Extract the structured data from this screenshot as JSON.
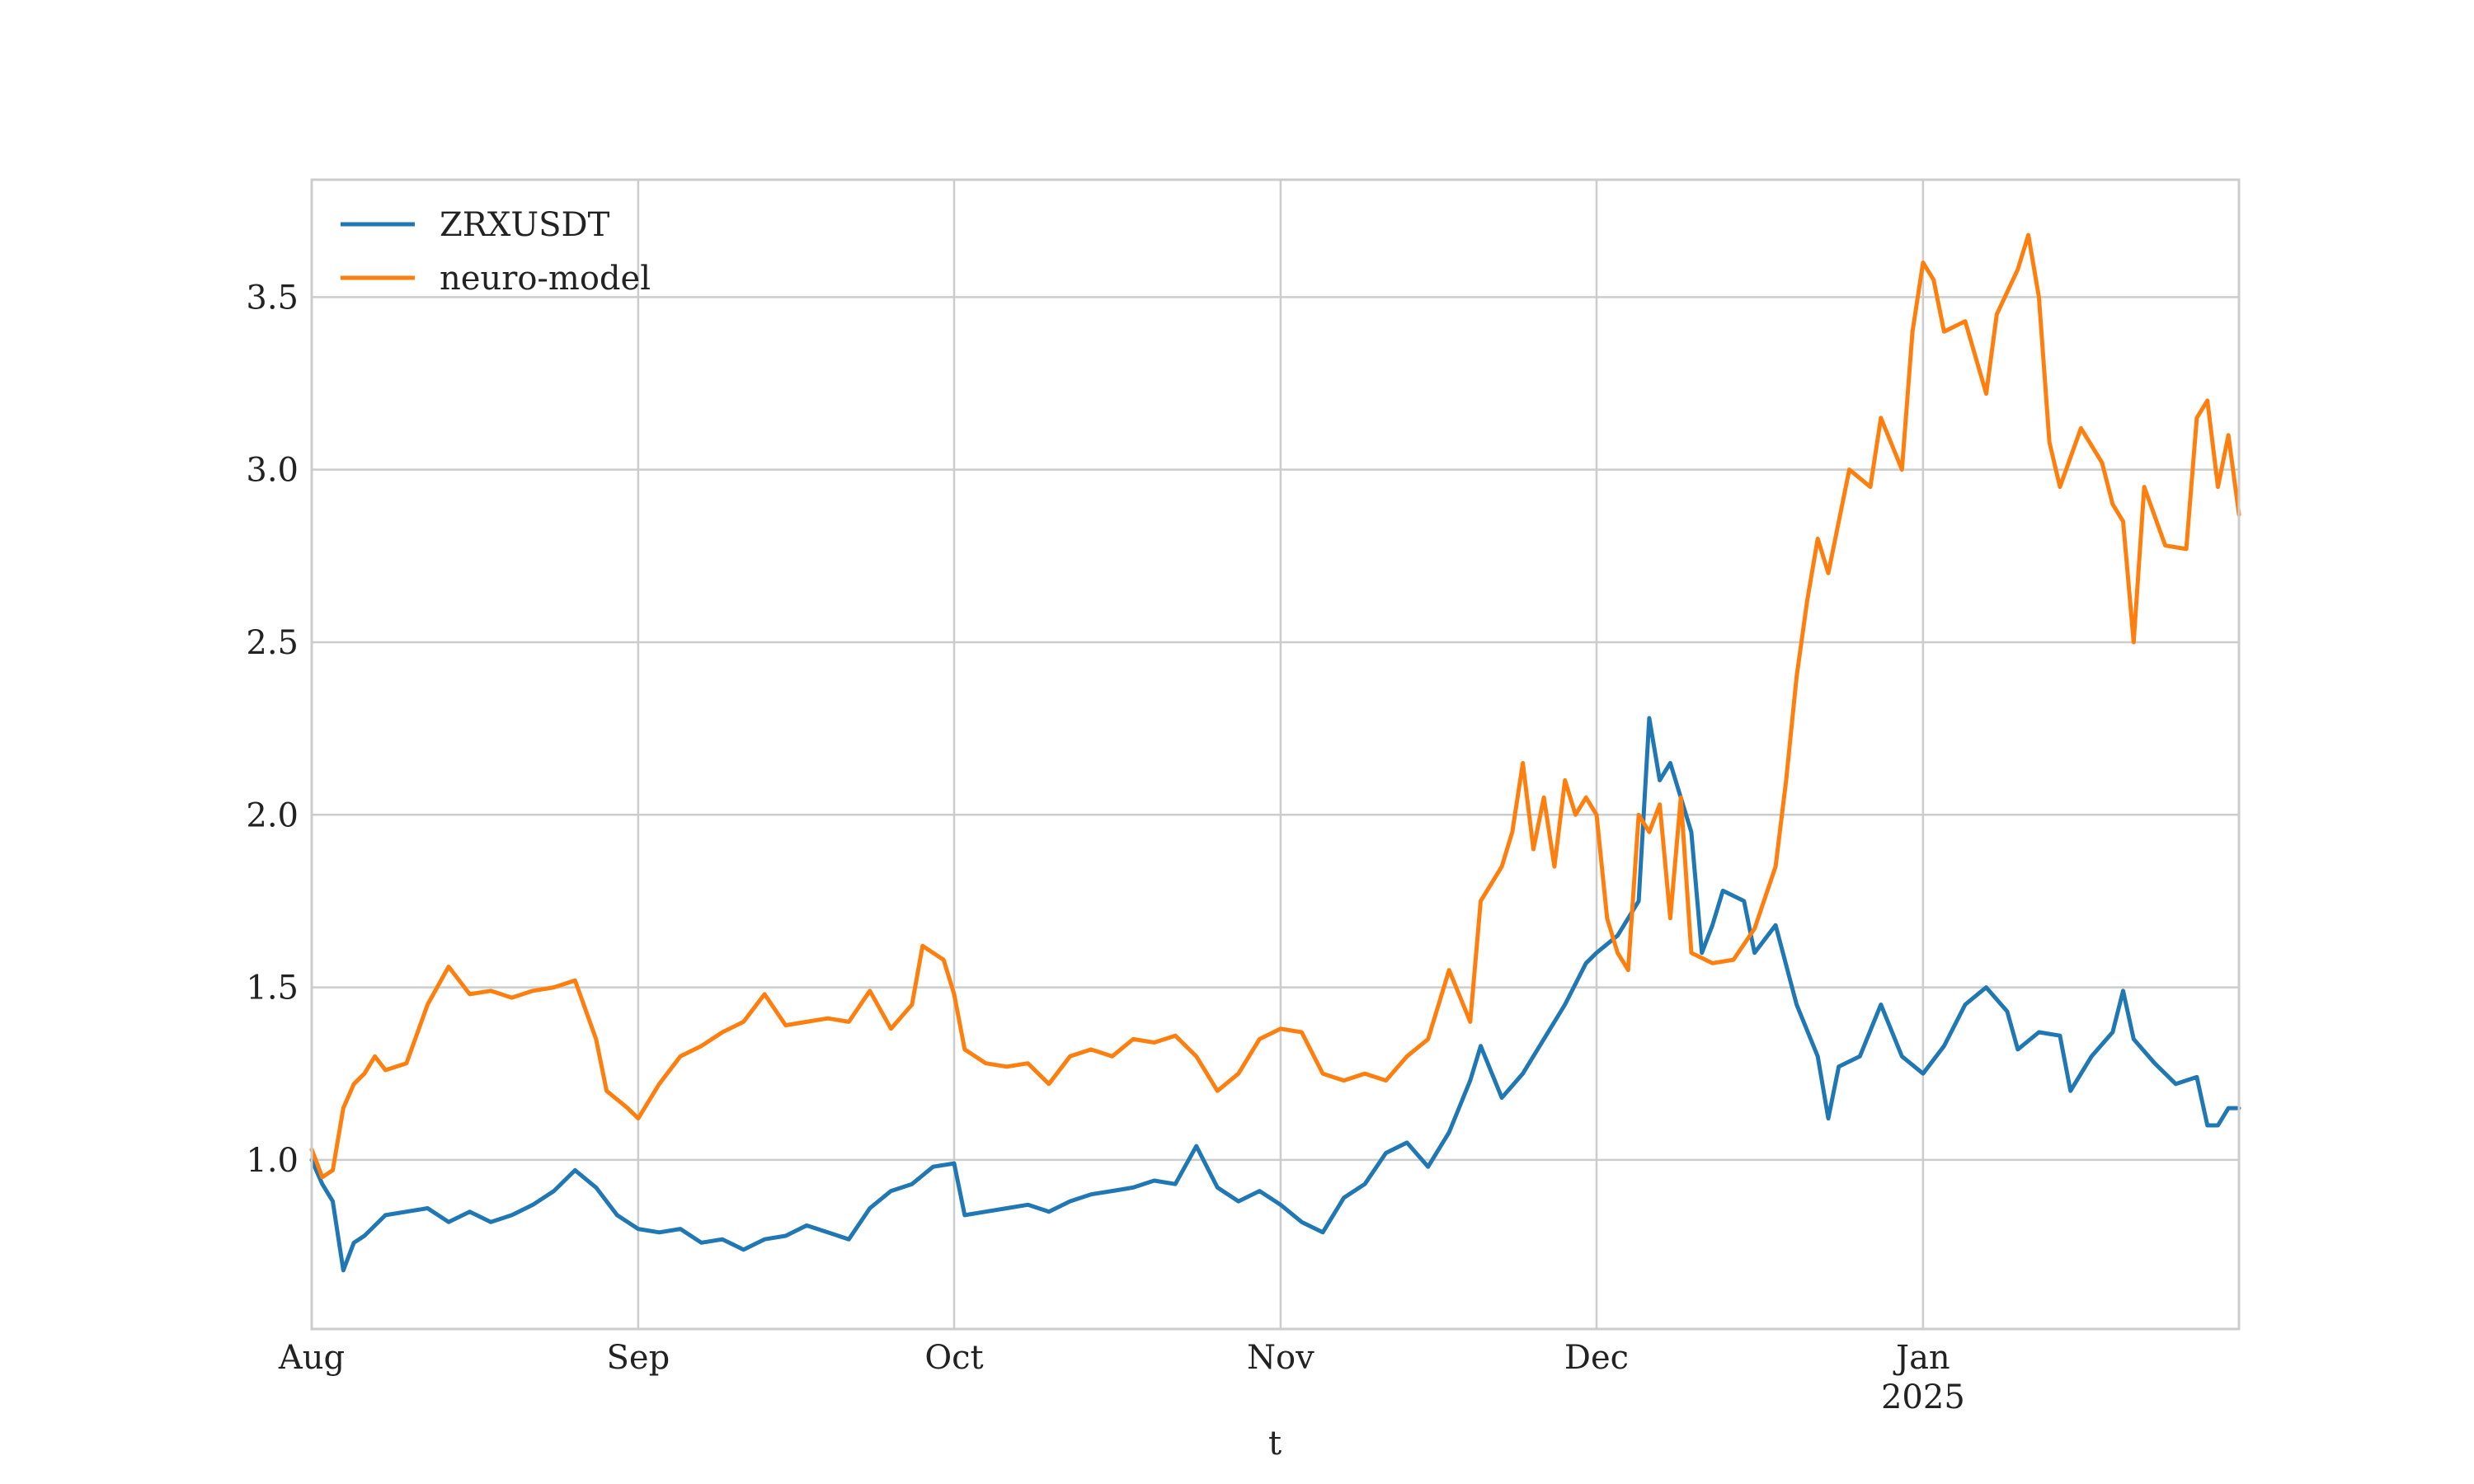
{
  "chart_data": {
    "type": "line",
    "title": "",
    "xlabel": "t",
    "ylabel": "",
    "x_range": [
      "2024-08-01",
      "2025-01-31"
    ],
    "ylim": [
      0.51,
      3.84
    ],
    "grid": true,
    "legend_position": "top-left",
    "x_ticks": [
      {
        "date": "2024-08-01",
        "label": "Aug",
        "sublabel": ""
      },
      {
        "date": "2024-09-01",
        "label": "Sep",
        "sublabel": ""
      },
      {
        "date": "2024-10-01",
        "label": "Oct",
        "sublabel": ""
      },
      {
        "date": "2024-11-01",
        "label": "Nov",
        "sublabel": ""
      },
      {
        "date": "2024-12-01",
        "label": "Dec",
        "sublabel": ""
      },
      {
        "date": "2025-01-01",
        "label": "Jan",
        "sublabel": "2025"
      }
    ],
    "y_ticks": [
      {
        "value": 1.0,
        "label": "1.0"
      },
      {
        "value": 1.5,
        "label": "1.5"
      },
      {
        "value": 2.0,
        "label": "2.0"
      },
      {
        "value": 2.5,
        "label": "2.5"
      },
      {
        "value": 3.0,
        "label": "3.0"
      },
      {
        "value": 3.5,
        "label": "3.5"
      }
    ],
    "series": [
      {
        "name": "ZRXUSDT",
        "color": "#1f77b4",
        "points": [
          [
            "2024-08-01",
            1.0
          ],
          [
            "2024-08-02",
            0.93
          ],
          [
            "2024-08-03",
            0.88
          ],
          [
            "2024-08-04",
            0.68
          ],
          [
            "2024-08-05",
            0.76
          ],
          [
            "2024-08-06",
            0.78
          ],
          [
            "2024-08-08",
            0.84
          ],
          [
            "2024-08-10",
            0.85
          ],
          [
            "2024-08-12",
            0.86
          ],
          [
            "2024-08-14",
            0.82
          ],
          [
            "2024-08-16",
            0.85
          ],
          [
            "2024-08-18",
            0.82
          ],
          [
            "2024-08-20",
            0.84
          ],
          [
            "2024-08-22",
            0.87
          ],
          [
            "2024-08-24",
            0.91
          ],
          [
            "2024-08-26",
            0.97
          ],
          [
            "2024-08-28",
            0.92
          ],
          [
            "2024-08-30",
            0.84
          ],
          [
            "2024-09-01",
            0.8
          ],
          [
            "2024-09-03",
            0.79
          ],
          [
            "2024-09-05",
            0.8
          ],
          [
            "2024-09-07",
            0.76
          ],
          [
            "2024-09-09",
            0.77
          ],
          [
            "2024-09-11",
            0.74
          ],
          [
            "2024-09-13",
            0.77
          ],
          [
            "2024-09-15",
            0.78
          ],
          [
            "2024-09-17",
            0.81
          ],
          [
            "2024-09-19",
            0.79
          ],
          [
            "2024-09-21",
            0.77
          ],
          [
            "2024-09-23",
            0.86
          ],
          [
            "2024-09-25",
            0.91
          ],
          [
            "2024-09-27",
            0.93
          ],
          [
            "2024-09-29",
            0.98
          ],
          [
            "2024-10-01",
            0.99
          ],
          [
            "2024-10-02",
            0.84
          ],
          [
            "2024-10-04",
            0.85
          ],
          [
            "2024-10-06",
            0.86
          ],
          [
            "2024-10-08",
            0.87
          ],
          [
            "2024-10-10",
            0.85
          ],
          [
            "2024-10-12",
            0.88
          ],
          [
            "2024-10-14",
            0.9
          ],
          [
            "2024-10-16",
            0.91
          ],
          [
            "2024-10-18",
            0.92
          ],
          [
            "2024-10-20",
            0.94
          ],
          [
            "2024-10-22",
            0.93
          ],
          [
            "2024-10-24",
            1.04
          ],
          [
            "2024-10-26",
            0.92
          ],
          [
            "2024-10-28",
            0.88
          ],
          [
            "2024-10-30",
            0.91
          ],
          [
            "2024-11-01",
            0.87
          ],
          [
            "2024-11-03",
            0.82
          ],
          [
            "2024-11-05",
            0.79
          ],
          [
            "2024-11-07",
            0.89
          ],
          [
            "2024-11-09",
            0.93
          ],
          [
            "2024-11-11",
            1.02
          ],
          [
            "2024-11-13",
            1.05
          ],
          [
            "2024-11-15",
            0.98
          ],
          [
            "2024-11-17",
            1.08
          ],
          [
            "2024-11-19",
            1.23
          ],
          [
            "2024-11-20",
            1.33
          ],
          [
            "2024-11-22",
            1.18
          ],
          [
            "2024-11-24",
            1.25
          ],
          [
            "2024-11-26",
            1.35
          ],
          [
            "2024-11-28",
            1.45
          ],
          [
            "2024-11-30",
            1.57
          ],
          [
            "2024-12-01",
            1.6
          ],
          [
            "2024-12-03",
            1.65
          ],
          [
            "2024-12-05",
            1.75
          ],
          [
            "2024-12-06",
            2.28
          ],
          [
            "2024-12-07",
            2.1
          ],
          [
            "2024-12-08",
            2.15
          ],
          [
            "2024-12-10",
            1.95
          ],
          [
            "2024-12-11",
            1.6
          ],
          [
            "2024-12-12",
            1.68
          ],
          [
            "2024-12-13",
            1.78
          ],
          [
            "2024-12-15",
            1.75
          ],
          [
            "2024-12-16",
            1.6
          ],
          [
            "2024-12-18",
            1.68
          ],
          [
            "2024-12-20",
            1.45
          ],
          [
            "2024-12-22",
            1.3
          ],
          [
            "2024-12-23",
            1.12
          ],
          [
            "2024-12-24",
            1.27
          ],
          [
            "2024-12-26",
            1.3
          ],
          [
            "2024-12-28",
            1.45
          ],
          [
            "2024-12-30",
            1.3
          ],
          [
            "2025-01-01",
            1.25
          ],
          [
            "2025-01-03",
            1.33
          ],
          [
            "2025-01-05",
            1.45
          ],
          [
            "2025-01-07",
            1.5
          ],
          [
            "2025-01-09",
            1.43
          ],
          [
            "2025-01-10",
            1.32
          ],
          [
            "2025-01-12",
            1.37
          ],
          [
            "2025-01-14",
            1.36
          ],
          [
            "2025-01-15",
            1.2
          ],
          [
            "2025-01-17",
            1.3
          ],
          [
            "2025-01-19",
            1.37
          ],
          [
            "2025-01-20",
            1.49
          ],
          [
            "2025-01-21",
            1.35
          ],
          [
            "2025-01-23",
            1.28
          ],
          [
            "2025-01-25",
            1.22
          ],
          [
            "2025-01-27",
            1.24
          ],
          [
            "2025-01-28",
            1.1
          ],
          [
            "2025-01-29",
            1.1
          ],
          [
            "2025-01-30",
            1.15
          ],
          [
            "2025-01-31",
            1.15
          ]
        ]
      },
      {
        "name": "neuro-model",
        "color": "#ff7f0e",
        "points": [
          [
            "2024-08-01",
            1.03
          ],
          [
            "2024-08-02",
            0.95
          ],
          [
            "2024-08-03",
            0.97
          ],
          [
            "2024-08-04",
            1.15
          ],
          [
            "2024-08-05",
            1.22
          ],
          [
            "2024-08-06",
            1.25
          ],
          [
            "2024-08-07",
            1.3
          ],
          [
            "2024-08-08",
            1.26
          ],
          [
            "2024-08-10",
            1.28
          ],
          [
            "2024-08-12",
            1.45
          ],
          [
            "2024-08-14",
            1.56
          ],
          [
            "2024-08-16",
            1.48
          ],
          [
            "2024-08-18",
            1.49
          ],
          [
            "2024-08-20",
            1.47
          ],
          [
            "2024-08-22",
            1.49
          ],
          [
            "2024-08-24",
            1.5
          ],
          [
            "2024-08-26",
            1.52
          ],
          [
            "2024-08-28",
            1.35
          ],
          [
            "2024-08-29",
            1.2
          ],
          [
            "2024-08-31",
            1.15
          ],
          [
            "2024-09-01",
            1.12
          ],
          [
            "2024-09-03",
            1.22
          ],
          [
            "2024-09-05",
            1.3
          ],
          [
            "2024-09-07",
            1.33
          ],
          [
            "2024-09-09",
            1.37
          ],
          [
            "2024-09-11",
            1.4
          ],
          [
            "2024-09-13",
            1.48
          ],
          [
            "2024-09-15",
            1.39
          ],
          [
            "2024-09-17",
            1.4
          ],
          [
            "2024-09-19",
            1.41
          ],
          [
            "2024-09-21",
            1.4
          ],
          [
            "2024-09-23",
            1.49
          ],
          [
            "2024-09-25",
            1.38
          ],
          [
            "2024-09-27",
            1.45
          ],
          [
            "2024-09-28",
            1.62
          ],
          [
            "2024-09-30",
            1.58
          ],
          [
            "2024-10-01",
            1.48
          ],
          [
            "2024-10-02",
            1.32
          ],
          [
            "2024-10-04",
            1.28
          ],
          [
            "2024-10-06",
            1.27
          ],
          [
            "2024-10-08",
            1.28
          ],
          [
            "2024-10-10",
            1.22
          ],
          [
            "2024-10-12",
            1.3
          ],
          [
            "2024-10-14",
            1.32
          ],
          [
            "2024-10-16",
            1.3
          ],
          [
            "2024-10-18",
            1.35
          ],
          [
            "2024-10-20",
            1.34
          ],
          [
            "2024-10-22",
            1.36
          ],
          [
            "2024-10-24",
            1.3
          ],
          [
            "2024-10-26",
            1.2
          ],
          [
            "2024-10-28",
            1.25
          ],
          [
            "2024-10-30",
            1.35
          ],
          [
            "2024-11-01",
            1.38
          ],
          [
            "2024-11-03",
            1.37
          ],
          [
            "2024-11-05",
            1.25
          ],
          [
            "2024-11-07",
            1.23
          ],
          [
            "2024-11-09",
            1.25
          ],
          [
            "2024-11-11",
            1.23
          ],
          [
            "2024-11-13",
            1.3
          ],
          [
            "2024-11-15",
            1.35
          ],
          [
            "2024-11-17",
            1.55
          ],
          [
            "2024-11-19",
            1.4
          ],
          [
            "2024-11-20",
            1.75
          ],
          [
            "2024-11-22",
            1.85
          ],
          [
            "2024-11-23",
            1.95
          ],
          [
            "2024-11-24",
            2.15
          ],
          [
            "2024-11-25",
            1.9
          ],
          [
            "2024-11-26",
            2.05
          ],
          [
            "2024-11-27",
            1.85
          ],
          [
            "2024-11-28",
            2.1
          ],
          [
            "2024-11-29",
            2.0
          ],
          [
            "2024-11-30",
            2.05
          ],
          [
            "2024-12-01",
            2.0
          ],
          [
            "2024-12-02",
            1.7
          ],
          [
            "2024-12-03",
            1.6
          ],
          [
            "2024-12-04",
            1.55
          ],
          [
            "2024-12-05",
            2.0
          ],
          [
            "2024-12-06",
            1.95
          ],
          [
            "2024-12-07",
            2.03
          ],
          [
            "2024-12-08",
            1.7
          ],
          [
            "2024-12-09",
            2.05
          ],
          [
            "2024-12-10",
            1.6
          ],
          [
            "2024-12-12",
            1.57
          ],
          [
            "2024-12-14",
            1.58
          ],
          [
            "2024-12-16",
            1.67
          ],
          [
            "2024-12-18",
            1.85
          ],
          [
            "2024-12-19",
            2.1
          ],
          [
            "2024-12-20",
            2.4
          ],
          [
            "2024-12-21",
            2.62
          ],
          [
            "2024-12-22",
            2.8
          ],
          [
            "2024-12-23",
            2.7
          ],
          [
            "2024-12-25",
            3.0
          ],
          [
            "2024-12-27",
            2.95
          ],
          [
            "2024-12-28",
            3.15
          ],
          [
            "2024-12-30",
            3.0
          ],
          [
            "2024-12-31",
            3.4
          ],
          [
            "2025-01-01",
            3.6
          ],
          [
            "2025-01-02",
            3.55
          ],
          [
            "2025-01-03",
            3.4
          ],
          [
            "2025-01-05",
            3.43
          ],
          [
            "2025-01-07",
            3.22
          ],
          [
            "2025-01-08",
            3.45
          ],
          [
            "2025-01-10",
            3.58
          ],
          [
            "2025-01-11",
            3.68
          ],
          [
            "2025-01-12",
            3.5
          ],
          [
            "2025-01-13",
            3.08
          ],
          [
            "2025-01-14",
            2.95
          ],
          [
            "2025-01-16",
            3.12
          ],
          [
            "2025-01-18",
            3.02
          ],
          [
            "2025-01-19",
            2.9
          ],
          [
            "2025-01-20",
            2.85
          ],
          [
            "2025-01-21",
            2.5
          ],
          [
            "2025-01-22",
            2.95
          ],
          [
            "2025-01-24",
            2.78
          ],
          [
            "2025-01-26",
            2.77
          ],
          [
            "2025-01-27",
            3.15
          ],
          [
            "2025-01-28",
            3.2
          ],
          [
            "2025-01-29",
            2.95
          ],
          [
            "2025-01-30",
            3.1
          ],
          [
            "2025-01-31",
            2.87
          ]
        ]
      }
    ]
  }
}
